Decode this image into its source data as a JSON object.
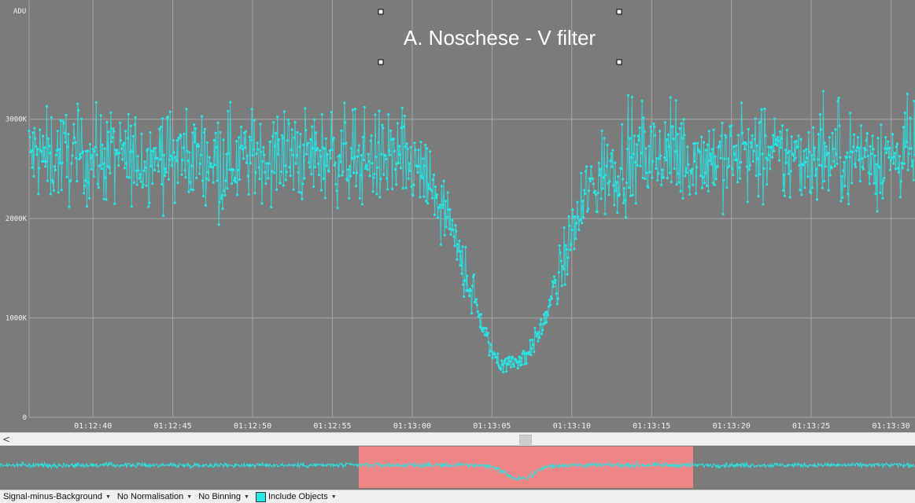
{
  "chart_data": {
    "type": "scatter",
    "title": "A. Noschese - V filter",
    "ylabel": "ADU",
    "y_ticks": [
      "3000K",
      "2000K",
      "1000K",
      "0"
    ],
    "y_tick_values": [
      3000,
      2000,
      1000,
      0
    ],
    "x_ticks": [
      "01:12:40",
      "01:12:45",
      "01:12:50",
      "01:12:55",
      "01:13:00",
      "01:13:05",
      "01:13:10",
      "01:13:15",
      "01:13:20",
      "01:13:25",
      "01:13:30"
    ],
    "x_tick_seconds": [
      0,
      5,
      10,
      15,
      20,
      25,
      30,
      35,
      40,
      45,
      50
    ],
    "xlim_seconds": [
      -4,
      51.5
    ],
    "ylim": [
      0,
      4200
    ],
    "grid": true,
    "series_color": "#27e6e6",
    "series": [
      {
        "x": [
          -4,
          -3,
          -2,
          -1,
          0,
          1,
          2,
          3,
          4,
          5,
          6,
          7,
          8,
          9,
          10,
          11,
          12,
          13,
          14,
          15,
          16,
          17,
          18,
          19,
          20,
          21,
          22,
          23,
          24,
          24.5,
          25,
          25.5,
          26,
          27,
          28,
          29,
          30,
          31,
          32,
          33,
          34,
          35,
          36,
          37,
          38,
          39,
          40,
          41,
          42,
          43,
          44,
          45,
          46,
          47,
          48,
          49,
          50,
          51
        ],
        "values": [
          2650,
          2600,
          2640,
          2620,
          2610,
          2630,
          2600,
          2620,
          2640,
          2610,
          2620,
          2630,
          2600,
          2610,
          2620,
          2640,
          2610,
          2620,
          2630,
          2640,
          2620,
          2610,
          2600,
          2580,
          2500,
          2350,
          2050,
          1600,
          1150,
          850,
          650,
          560,
          540,
          600,
          850,
          1300,
          1850,
          2250,
          2450,
          2550,
          2580,
          2610,
          2620,
          2600,
          2630,
          2610,
          2620,
          2640,
          2610,
          2600,
          2620,
          2630,
          2610,
          2620,
          2640,
          2620,
          2610,
          2630
        ]
      }
    ]
  },
  "overview": {
    "fill_color": "#27e6e6",
    "highlight_color": "#f08585"
  },
  "scrollbar": {
    "left_arrow": "<"
  },
  "toolbar": {
    "mode": "Signal-minus-Background",
    "normalisation": "No Normalisation",
    "binning": "No Binning",
    "include_objects": "Include Objects",
    "swatch_color": "#27e6e6"
  }
}
